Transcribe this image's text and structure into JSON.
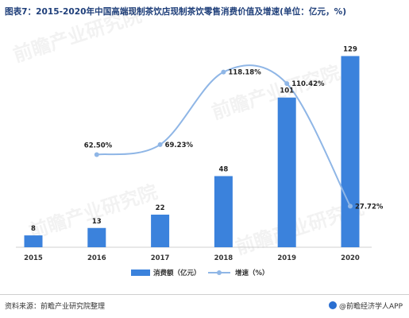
{
  "title": "图表7：2015-2020年中国高端现制茶饮店现制茶饮零售消费价值及增速(单位：亿元，%)",
  "source": "资料来源：前瞻产业研究院整理",
  "brand": "@前瞻经济学人APP",
  "colors": {
    "bar": "#3b82dc",
    "line": "#8fb6e6",
    "title": "#1f3f7a"
  },
  "chart_data": {
    "type": "bar+line",
    "categories": [
      "2015",
      "2016",
      "2017",
      "2018",
      "2019",
      "2020"
    ],
    "series": [
      {
        "name": "消费额（亿元）",
        "type": "bar",
        "values": [
          8,
          13,
          22,
          48,
          101,
          129
        ],
        "labels": [
          "8",
          "13",
          "22",
          "48",
          "101",
          "129"
        ]
      },
      {
        "name": "增速（%）",
        "type": "line",
        "values": [
          null,
          62.5,
          69.23,
          118.18,
          110.42,
          27.72
        ],
        "labels": [
          "",
          "62.50%",
          "69.23%",
          "118.18%",
          "110.42%",
          "27.72%"
        ]
      }
    ],
    "bar_range": [
      0,
      140
    ],
    "line_range": [
      0,
      140
    ],
    "legend_position": "bottom",
    "grid": false
  }
}
